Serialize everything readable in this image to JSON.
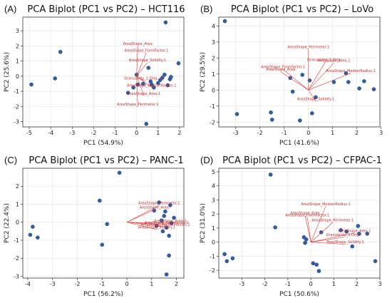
{
  "chart_data": [
    {
      "type": "scatter",
      "label": "(A)",
      "title": "PCA Biplot (PC1 vs PC2) – HCT116",
      "xlabel": "PC1 (54.9%)",
      "ylabel": "PC2 (25.6%)",
      "xlim": [
        -5.3,
        2.2
      ],
      "ylim": [
        -3.35,
        3.9
      ],
      "xticks": [
        -5,
        -4,
        -3,
        -2,
        -1,
        0,
        1,
        2
      ],
      "yticks": [
        -3,
        -2,
        -1,
        0,
        1,
        2,
        3
      ],
      "points": [
        {
          "x": -4.9,
          "y": -0.55
        },
        {
          "x": -3.8,
          "y": -0.15
        },
        {
          "x": -3.55,
          "y": 1.6
        },
        {
          "x": -0.4,
          "y": -1.1
        },
        {
          "x": -0.15,
          "y": -0.75
        },
        {
          "x": 0.0,
          "y": 0.1
        },
        {
          "x": 0.05,
          "y": -0.55
        },
        {
          "x": 0.3,
          "y": -0.5
        },
        {
          "x": 0.45,
          "y": -3.15
        },
        {
          "x": 0.55,
          "y": 0.55
        },
        {
          "x": 0.65,
          "y": -0.35
        },
        {
          "x": 0.7,
          "y": -0.55
        },
        {
          "x": 0.8,
          "y": -0.75
        },
        {
          "x": 1.0,
          "y": -0.45
        },
        {
          "x": 1.1,
          "y": -0.25
        },
        {
          "x": 1.2,
          "y": -0.1
        },
        {
          "x": 1.3,
          "y": 0.1
        },
        {
          "x": 1.35,
          "y": 3.55
        },
        {
          "x": 1.45,
          "y": -0.6
        },
        {
          "x": 1.55,
          "y": -0.2
        },
        {
          "x": 1.6,
          "y": -0.05
        },
        {
          "x": 1.95,
          "y": 0.85
        }
      ],
      "vectors": [
        {
          "name": "AreaShape_FormFactor.1",
          "x": 0.45,
          "y": 1.55
        },
        {
          "name": "AreaShape_Area",
          "x": 0.05,
          "y": 2.0
        },
        {
          "name": "AreaShape_Solidity.1",
          "x": 0.5,
          "y": 0.9
        },
        {
          "name": "Granularity_1.Orig...t1",
          "x": 0.35,
          "y": -0.3
        },
        {
          "name": "AreaShape_MedianRadius.1",
          "x": 0.7,
          "y": -0.75
        },
        {
          "name": "AreaShape_Area.1",
          "x": 0.35,
          "y": -1.3
        },
        {
          "name": "AreaShape_Perimeter.1",
          "x": 0.05,
          "y": -2.0
        }
      ]
    },
    {
      "type": "scatter",
      "label": "(B)",
      "title": "PCA Biplot (PC1 vs PC2) – LoVo",
      "xlabel": "PC1 (41.6%)",
      "ylabel": "PC2 (29.5%)",
      "xlim": [
        -3.7,
        2.95
      ],
      "ylim": [
        -2.3,
        4.55
      ],
      "xticks": [
        -3,
        -2,
        -1,
        0,
        1,
        2,
        3
      ],
      "yticks": [
        -2,
        -1,
        0,
        1,
        2,
        3,
        4
      ],
      "points": [
        {
          "x": -3.45,
          "y": 4.3
        },
        {
          "x": -2.95,
          "y": -1.5
        },
        {
          "x": -1.55,
          "y": -1.4
        },
        {
          "x": -1.5,
          "y": -1.85
        },
        {
          "x": -0.75,
          "y": 0.75
        },
        {
          "x": -0.65,
          "y": -0.1
        },
        {
          "x": -0.35,
          "y": -1.9
        },
        {
          "x": -0.25,
          "y": 0.95
        },
        {
          "x": 0.05,
          "y": 0.6
        },
        {
          "x": 0.15,
          "y": -1.45
        },
        {
          "x": 0.3,
          "y": -0.45
        },
        {
          "x": 1.05,
          "y": 0.5
        },
        {
          "x": 1.55,
          "y": 1.05
        },
        {
          "x": 1.65,
          "y": 0.5
        },
        {
          "x": 2.1,
          "y": 0.1
        },
        {
          "x": 2.3,
          "y": 0.55
        },
        {
          "x": 2.7,
          "y": 0.05
        }
      ],
      "vectors": [
        {
          "name": "AreaShape_Perimeter.1",
          "x": 0.0,
          "y": 2.55
        },
        {
          "name": "Granularity_1.Orig...",
          "x": 0.7,
          "y": 1.75
        },
        {
          "name": "AreaShape_Area.1",
          "x": 1.05,
          "y": 1.7
        },
        {
          "name": "AreaShape_FormFactor.1",
          "x": -1.05,
          "y": 1.3
        },
        {
          "name": "AreaShape_Area",
          "x": -1.15,
          "y": 1.15
        },
        {
          "name": "AreaShape_MedianRadius.1",
          "x": 1.75,
          "y": 1.05
        },
        {
          "name": "AreaShape_Solidity.1",
          "x": 0.3,
          "y": -0.7
        }
      ]
    },
    {
      "type": "scatter",
      "label": "(C)",
      "title": "PCA Biplot (PC1 vs PC2) – PANC-1",
      "xlabel": "PC1 (56.2%)",
      "ylabel": "PC2 (22.4%)",
      "xlim": [
        -4.2,
        2.3
      ],
      "ylim": [
        -3.1,
        3.0
      ],
      "xticks": [
        -4,
        -3,
        -2,
        -1,
        0,
        1,
        2
      ],
      "yticks": [
        -3,
        -2,
        -1,
        0,
        1,
        2
      ],
      "points": [
        {
          "x": -3.9,
          "y": -0.7
        },
        {
          "x": -3.8,
          "y": -0.25
        },
        {
          "x": -3.6,
          "y": -0.85
        },
        {
          "x": -1.1,
          "y": 1.2
        },
        {
          "x": -1.0,
          "y": -1.25
        },
        {
          "x": -0.8,
          "y": -0.1
        },
        {
          "x": -0.3,
          "y": 2.75
        },
        {
          "x": 1.1,
          "y": 0.65
        },
        {
          "x": 1.2,
          "y": -0.2
        },
        {
          "x": 1.3,
          "y": 1.1
        },
        {
          "x": 1.4,
          "y": 0.1
        },
        {
          "x": 1.45,
          "y": -0.5
        },
        {
          "x": 1.5,
          "y": 0.35
        },
        {
          "x": 1.55,
          "y": 0.6
        },
        {
          "x": 1.6,
          "y": -0.3
        },
        {
          "x": 1.6,
          "y": -2.9
        },
        {
          "x": 1.7,
          "y": -0.75
        },
        {
          "x": 1.7,
          "y": -1.85
        },
        {
          "x": 1.75,
          "y": 0.95
        },
        {
          "x": 1.8,
          "y": -0.05
        },
        {
          "x": 1.9,
          "y": 0.25
        }
      ],
      "vectors": [
        {
          "name": "AreaShape_Perimeter.1",
          "x": 1.3,
          "y": 0.95
        },
        {
          "name": "AreaShape_Area",
          "x": 1.1,
          "y": 0.7
        },
        {
          "name": "AreaShape_Area.1",
          "x": 1.75,
          "y": -0.05
        },
        {
          "name": "AreaShape_FormFactor.1",
          "x": 1.6,
          "y": -0.15
        },
        {
          "name": "AreaShape_MedianRadius.1",
          "x": 1.55,
          "y": -0.25
        },
        {
          "name": "AreaShape_Solidity.1",
          "x": 1.2,
          "y": -0.4
        }
      ]
    },
    {
      "type": "scatter",
      "label": "(D)",
      "title": "PCA Biplot (PC1 vs PC2) – CFPAC-1",
      "xlabel": "PC1 (50.6%)",
      "ylabel": "PC2 (31.0%)",
      "xlim": [
        -4.0,
        3.0
      ],
      "ylim": [
        -2.55,
        5.25
      ],
      "xticks": [
        -3,
        -2,
        -1,
        0,
        1,
        2,
        3
      ],
      "yticks": [
        -2,
        -1,
        0,
        1,
        2,
        3,
        4,
        5
      ],
      "points": [
        {
          "x": -3.75,
          "y": -0.85
        },
        {
          "x": -3.65,
          "y": -1.35
        },
        {
          "x": -3.4,
          "y": -1.15
        },
        {
          "x": -1.75,
          "y": 4.8
        },
        {
          "x": -1.55,
          "y": 1.05
        },
        {
          "x": -0.3,
          "y": 0.35
        },
        {
          "x": -0.25,
          "y": -0.05
        },
        {
          "x": -0.2,
          "y": 0.2
        },
        {
          "x": 0.1,
          "y": -1.5
        },
        {
          "x": 0.25,
          "y": -1.6
        },
        {
          "x": 0.35,
          "y": -2.05
        },
        {
          "x": 0.45,
          "y": 0.7
        },
        {
          "x": 1.3,
          "y": 0.85
        },
        {
          "x": 1.55,
          "y": 0.75
        },
        {
          "x": 1.8,
          "y": -0.3
        },
        {
          "x": 2.05,
          "y": 1.15
        },
        {
          "x": 2.1,
          "y": 0.6
        },
        {
          "x": 2.45,
          "y": 0.6
        },
        {
          "x": 2.8,
          "y": -1.35
        }
      ],
      "vectors": [
        {
          "name": "AreaShape_MedianRadius.1",
          "x": 0.65,
          "y": 2.55
        },
        {
          "name": "AreaShape_Area",
          "x": -0.25,
          "y": 1.9
        },
        {
          "name": "AreaShape_FormFactor.1",
          "x": -0.15,
          "y": 1.75
        },
        {
          "name": "AreaShape_Perimeter.1",
          "x": 0.95,
          "y": 1.4
        },
        {
          "name": "AreaShape_Area.1",
          "x": 1.9,
          "y": 0.65
        },
        {
          "name": "Granularity_1.Orig...",
          "x": 1.45,
          "y": 0.35
        },
        {
          "name": "AreaShape_Solidity.1",
          "x": 1.5,
          "y": -0.15
        }
      ]
    }
  ]
}
